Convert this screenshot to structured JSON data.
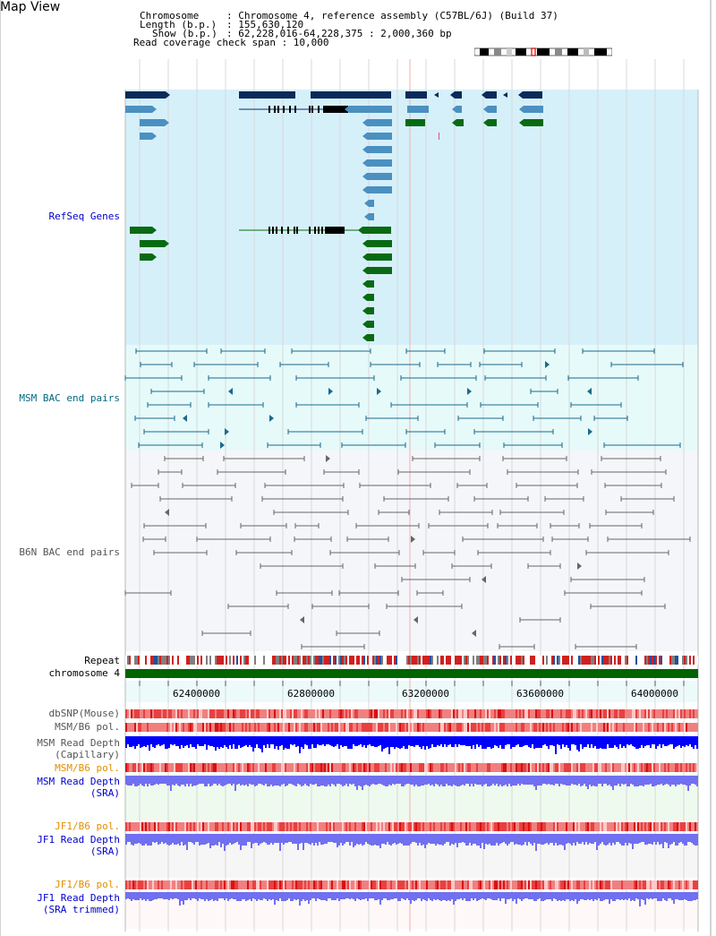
{
  "page": {
    "title": "Map View"
  },
  "info": {
    "chromosome_key": "Chromosome",
    "chromosome_value": ": Chromosome 4, reference assembly (C57BL/6J) (Build 37)",
    "length_key": "Length (b.p.)",
    "length_value": ": 155,630,120",
    "show_key": "Show (b.p.)",
    "show_value": ": 62,228,016-64,228,375 : 2,000,360 bp",
    "coverage_line": "Read coverage check span : 10,000"
  },
  "tracks": {
    "refseq": "RefSeq Genes",
    "msm_bac": "MSM BAC end pairs",
    "b6n_bac": "B6N BAC end pairs",
    "repeat": "Repeat",
    "chromosome": "chromosome 4",
    "dbsnp": "dbSNP(Mouse)",
    "msm_b6_pol_1": "MSM/B6 pol.",
    "msm_read_depth_cap_1": "MSM Read Depth",
    "msm_read_depth_cap_2": "(Capillary)",
    "msm_b6_pol_2": "MSM/B6 pol.",
    "msm_read_depth_sra_1": "MSM Read Depth",
    "msm_read_depth_sra_2": "(SRA)",
    "jf1_b6_pol_1": "JF1/B6 pol.",
    "jf1_read_depth_sra_1": "JF1 Read Depth",
    "jf1_read_depth_sra_2": "(SRA)",
    "jf1_b6_pol_2": "JF1/B6 pol.",
    "jf1_read_depth_trim_1": "JF1 Read Depth",
    "jf1_read_depth_trim_2": "(SRA trimmed)"
  },
  "axis": {
    "ticks": [
      "62400000",
      "62800000",
      "63200000",
      "63600000",
      "64000000"
    ]
  },
  "colors": {
    "refseq_bg": "#d6f0fa",
    "msm_bac_bg": "#e6fafa",
    "b6n_bac_bg": "#f4f6fa",
    "gene_dark": "#0a2a5a",
    "gene_mid": "#4a90c0",
    "gene_green": "#0a6a14",
    "msm_bac": "#1a6a8a",
    "b6n_bac": "#666666",
    "label_blue": "#0000cc",
    "label_teal": "#006a80",
    "label_gray": "#555555",
    "label_orange": "#e09000",
    "chromosome_bar": "#006400",
    "depth_dark": "#0000ff",
    "depth_light": "#7070f0"
  }
}
